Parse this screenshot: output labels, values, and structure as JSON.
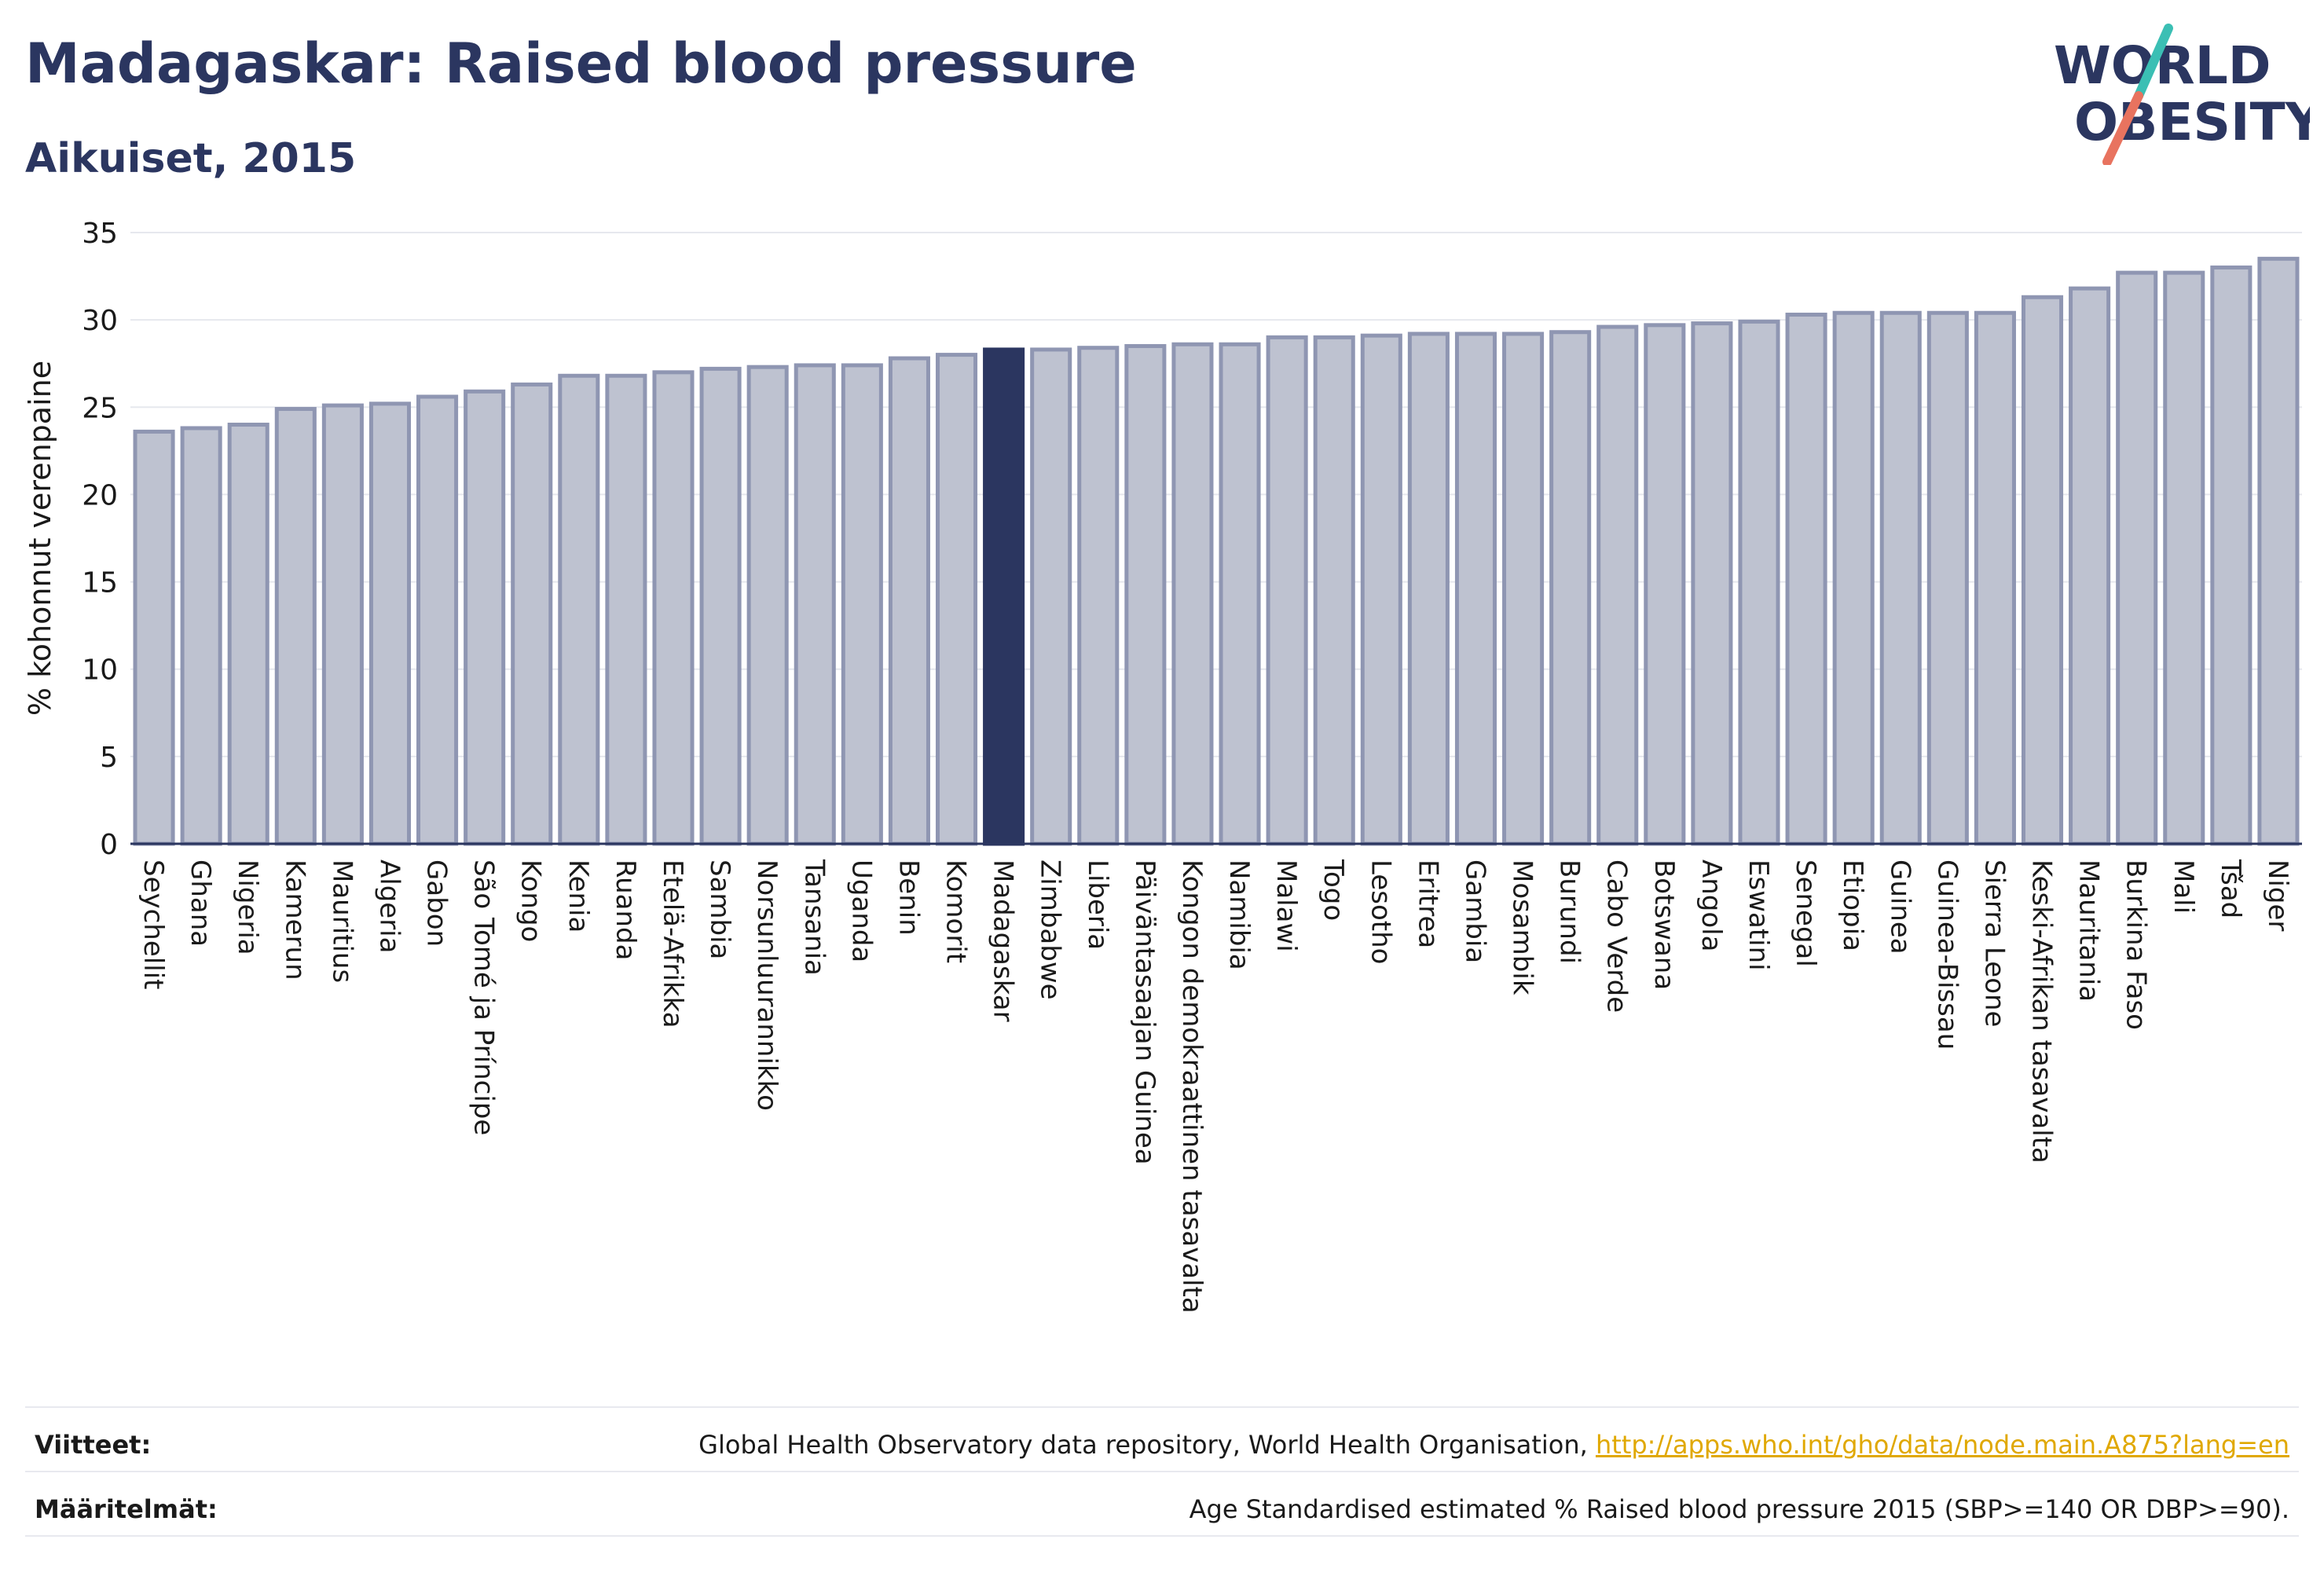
{
  "header": {
    "title": "Madagaskar: Raised blood pressure",
    "subtitle": "Aikuiset, 2015"
  },
  "logo": {
    "line1": "WORLD",
    "line2": "OBESITY"
  },
  "colors": {
    "bar": "#bec2d0",
    "bar_stroke": "#8f96b2",
    "highlight": "#2b3660",
    "grid": "#e6e8ee",
    "axis": "#2b3660",
    "logo_teal": "#3bbfb4",
    "logo_coral": "#e8735f"
  },
  "chart_data": {
    "type": "bar",
    "ylabel": "% kohonnut verenpaine",
    "ylim": [
      0,
      35
    ],
    "yticks": [
      0,
      5,
      10,
      15,
      20,
      25,
      30,
      35
    ],
    "highlight": "Madagaskar",
    "grid": true,
    "categories": [
      "Seychellit",
      "Ghana",
      "Nigeria",
      "Kamerun",
      "Mauritius",
      "Algeria",
      "Gabon",
      "São Tomé ja Príncipe",
      "Kongo",
      "Kenia",
      "Ruanda",
      "Etelä-Afrikka",
      "Sambia",
      "Norsunluurannikko",
      "Tansania",
      "Uganda",
      "Benin",
      "Komorit",
      "Madagaskar",
      "Zimbabwe",
      "Liberia",
      "Päiväntasaajan Guinea",
      "Kongon demokraattinen tasavalta",
      "Namibia",
      "Malawi",
      "Togo",
      "Lesotho",
      "Eritrea",
      "Gambia",
      "Mosambik",
      "Burundi",
      "Cabo Verde",
      "Botswana",
      "Angola",
      "Eswatini",
      "Senegal",
      "Etiopia",
      "Guinea",
      "Guinea-Bissau",
      "Sierra Leone",
      "Keski-Afrikan tasavalta",
      "Mauritania",
      "Burkina Faso",
      "Mali",
      "Tšad",
      "Niger"
    ],
    "values": [
      23.6,
      23.8,
      24.0,
      24.9,
      25.1,
      25.2,
      25.6,
      25.9,
      26.3,
      26.8,
      26.8,
      27.0,
      27.2,
      27.3,
      27.4,
      27.4,
      27.8,
      28.0,
      28.3,
      28.3,
      28.4,
      28.5,
      28.6,
      28.6,
      29.0,
      29.0,
      29.1,
      29.2,
      29.2,
      29.2,
      29.3,
      29.6,
      29.7,
      29.8,
      29.9,
      30.3,
      30.4,
      30.4,
      30.4,
      30.4,
      31.3,
      31.8,
      32.7,
      32.7,
      33.0,
      33.5
    ]
  },
  "footer": {
    "references_label": "Viitteet:",
    "references_text": "Global Health Observatory data repository, World Health Organisation, ",
    "references_link": "http://apps.who.int/gho/data/node.main.A875?lang=en",
    "definitions_label": "Määritelmät:",
    "definitions_text": "Age Standardised estimated % Raised blood pressure 2015 (SBP>=140 OR DBP>=90)."
  }
}
